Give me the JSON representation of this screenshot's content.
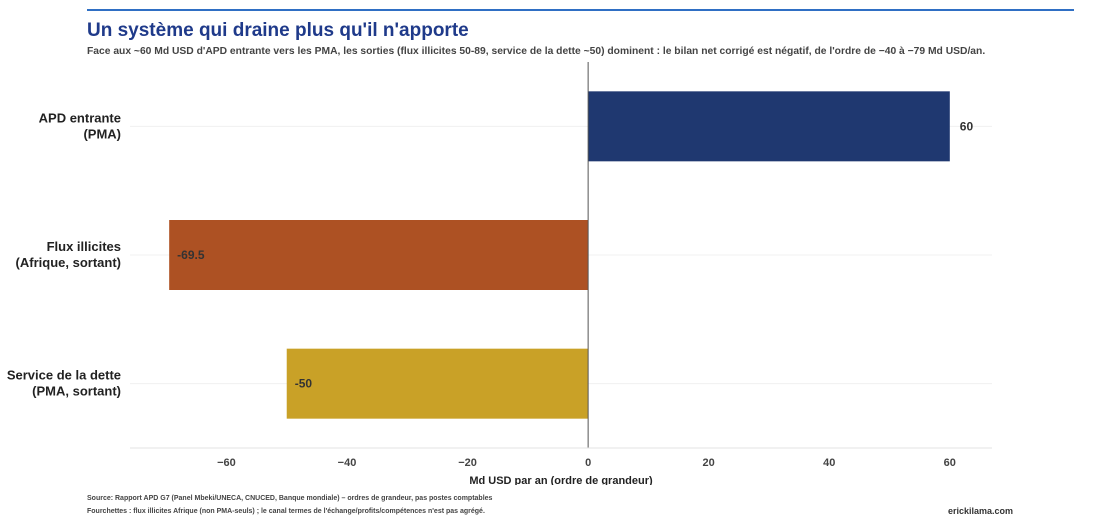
{
  "header": {
    "title": "Un système qui draine plus qu'il n'apporte",
    "subtitle": "Face aux ~60 Md USD d'APD entrante vers les PMA, les sorties (flux illicites 50-89, service de la dette ~50) dominent : le bilan net corrigé est négatif, de l'ordre de −40 à −79 Md USD/an."
  },
  "footer": {
    "source": "Source: Rapport APD G7 (Panel Mbeki/UNECA, CNUCED, Banque mondiale) – ordres de grandeur, pas postes comptables",
    "note": "Fourchettes : flux illicites Afrique (non PMA-seuls) ; le canal termes de l'échange/profits/compétences n'est pas agrégé.",
    "brand": "erickilama.com"
  },
  "chart_data": {
    "type": "bar",
    "orientation": "horizontal",
    "categories": [
      "APD entrante (PMA)",
      "Flux illicites (Afrique, sortant)",
      "Service de la dette (PMA, sortant)"
    ],
    "category_lines": [
      [
        "APD entrante",
        "(PMA)"
      ],
      [
        "Flux illicites",
        "(Afrique, sortant)"
      ],
      [
        "Service de la dette",
        "(PMA, sortant)"
      ]
    ],
    "values": [
      60,
      -69.5,
      -50
    ],
    "value_labels": [
      "60",
      "-69.5",
      "-50"
    ],
    "colors": [
      "#1f3870",
      "#ad5123",
      "#c9a127"
    ],
    "xlabel": "Md USD par an (ordre de grandeur)",
    "xlim": [
      -76,
      67
    ],
    "xticks": [
      -60,
      -40,
      -20,
      0,
      20,
      40,
      60
    ],
    "xtick_labels": [
      "−60",
      "−40",
      "−20",
      "0",
      "20",
      "40",
      "60"
    ],
    "grid": true
  }
}
